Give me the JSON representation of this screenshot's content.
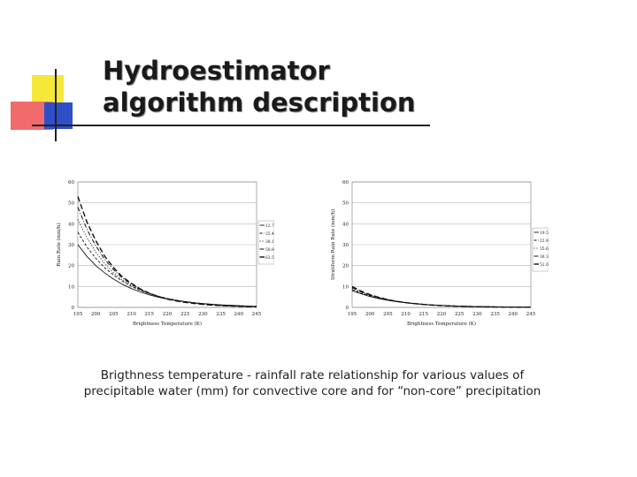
{
  "slide": {
    "title_line1": "Hydroestimator",
    "title_line2": "algorithm description",
    "caption_line1": "Brigthness temperature - rainfall rate relationship for various values of",
    "caption_line2": "precipitable water (mm) for convective core and for “non-core” precipitation",
    "accent_colors": {
      "yellow": "#f5e83a",
      "red": "#f26b6b",
      "blue": "#2f4fc9"
    }
  },
  "chart_data": [
    {
      "type": "line",
      "xlabel": "Brightness Temperature (K)",
      "ylabel": "Rain Rate (mm/h)",
      "xlim": [
        195,
        245
      ],
      "ylim": [
        0,
        60
      ],
      "xticks": [
        "195",
        "200",
        "205",
        "210",
        "215",
        "220",
        "225",
        "230",
        "235",
        "240",
        "245"
      ],
      "yticks": [
        "0",
        "10",
        "20",
        "30",
        "40",
        "50",
        "60"
      ],
      "grid": "horizontal",
      "legend": "right",
      "x": [
        195,
        197.5,
        200,
        202.5,
        205,
        207.5,
        210,
        212.5,
        215,
        217.5,
        220,
        222.5,
        225,
        227.5,
        230,
        232.5,
        235,
        237.5,
        240,
        242.5,
        245
      ],
      "series": [
        {
          "name": "12.7",
          "values": [
            30,
            24.5,
            20,
            16.5,
            13.5,
            11,
            9,
            7.4,
            6,
            4.9,
            4,
            3.3,
            2.7,
            2.2,
            1.8,
            1.5,
            1.2,
            1,
            0.8,
            0.6,
            0.5
          ]
        },
        {
          "name": "25.4",
          "values": [
            36,
            29,
            23.5,
            19,
            15.5,
            12.5,
            10,
            8.1,
            6.6,
            5.3,
            4.3,
            3.5,
            2.8,
            2.3,
            1.8,
            1.5,
            1.2,
            0.97,
            0.79,
            0.64,
            0.52
          ]
        },
        {
          "name": "38.1",
          "values": [
            42,
            33.5,
            26.5,
            21,
            16.5,
            13,
            10.5,
            8.4,
            6.7,
            5.3,
            4.2,
            3.4,
            2.7,
            2.1,
            1.7,
            1.35,
            1.1,
            0.86,
            0.68,
            0.54,
            0.43
          ]
        },
        {
          "name": "50.8",
          "values": [
            48,
            37.5,
            29.5,
            23,
            18,
            14,
            11,
            8.6,
            6.7,
            5.3,
            4.1,
            3.2,
            2.5,
            1.95,
            1.5,
            1.2,
            0.94,
            0.73,
            0.57,
            0.45,
            0.35
          ]
        },
        {
          "name": "63.5",
          "values": [
            53,
            41,
            32,
            24.5,
            19,
            14.5,
            11.5,
            8.8,
            6.8,
            5.2,
            4,
            3.1,
            2.4,
            1.9,
            1.45,
            1.1,
            0.86,
            0.66,
            0.51,
            0.4,
            0.3
          ]
        }
      ]
    },
    {
      "type": "line",
      "xlabel": "Brightness Temperature (K)",
      "ylabel": "Stratiform Rain Rate (mm/h)",
      "xlim": [
        195,
        245
      ],
      "ylim": [
        0,
        60
      ],
      "xticks": [
        "195",
        "200",
        "205",
        "210",
        "215",
        "220",
        "225",
        "230",
        "235",
        "240",
        "245"
      ],
      "yticks": [
        "0",
        "10",
        "20",
        "30",
        "40",
        "50",
        "60"
      ],
      "grid": "horizontal",
      "legend": "right",
      "x": [
        195,
        197.5,
        200,
        202.5,
        205,
        207.5,
        210,
        212.5,
        215,
        217.5,
        220,
        222.5,
        225,
        227.5,
        230,
        232.5,
        235,
        237.5,
        240,
        242.5,
        245
      ],
      "series": [
        {
          "name": "19.56",
          "values": [
            8,
            6.5,
            5.2,
            4.2,
            3.4,
            2.7,
            2.2,
            1.8,
            1.4,
            1.15,
            0.93,
            0.75,
            0.6,
            0.49,
            0.39,
            0.32,
            0.26,
            0.21,
            0.17,
            0.13,
            0.11
          ]
        },
        {
          "name": "22.96",
          "values": [
            8.5,
            6.8,
            5.5,
            4.4,
            3.5,
            2.8,
            2.3,
            1.85,
            1.5,
            1.2,
            0.96,
            0.77,
            0.62,
            0.5,
            0.4,
            0.32,
            0.26,
            0.21,
            0.17,
            0.13,
            0.11
          ]
        },
        {
          "name": "35.66",
          "values": [
            9,
            7.2,
            5.7,
            4.6,
            3.6,
            2.9,
            2.3,
            1.85,
            1.47,
            1.17,
            0.94,
            0.75,
            0.6,
            0.47,
            0.38,
            0.3,
            0.24,
            0.19,
            0.15,
            0.12,
            0.1
          ]
        },
        {
          "name": "38.36",
          "values": [
            9.5,
            7.5,
            5.9,
            4.7,
            3.7,
            2.9,
            2.3,
            1.82,
            1.44,
            1.14,
            0.9,
            0.71,
            0.56,
            0.44,
            0.35,
            0.28,
            0.22,
            0.17,
            0.14,
            0.11,
            0.09
          ]
        },
        {
          "name": "51.06",
          "values": [
            10,
            7.8,
            6.1,
            4.8,
            3.7,
            2.9,
            2.3,
            1.8,
            1.4,
            1.1,
            0.86,
            0.67,
            0.52,
            0.41,
            0.32,
            0.25,
            0.2,
            0.15,
            0.12,
            0.09,
            0.07
          ]
        }
      ]
    }
  ]
}
